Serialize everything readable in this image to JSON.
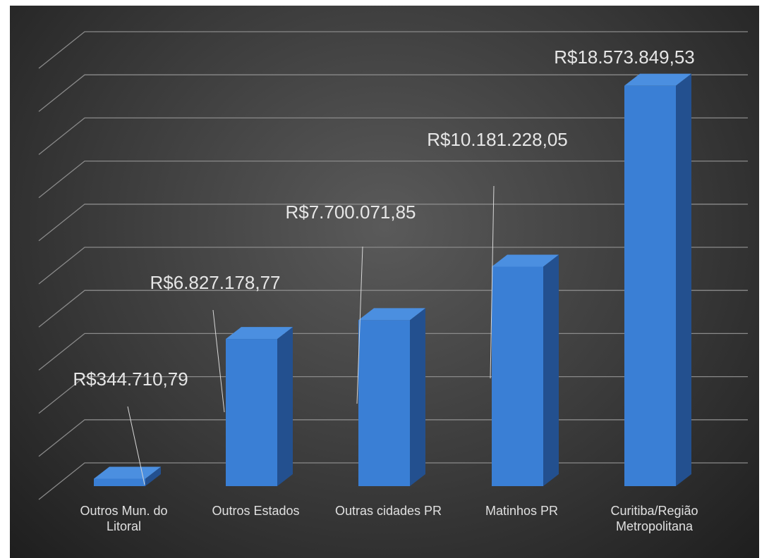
{
  "chart_data": {
    "type": "bar3d",
    "categories": [
      "Outros Mun. do Litoral",
      "Outros Estados",
      "Outras cidades PR",
      "Matinhos PR",
      "Curitiba/Região Metropolitana"
    ],
    "values": [
      344710.79,
      6827178.77,
      7700071.85,
      10181228.05,
      18573849.53
    ],
    "value_labels": [
      "R$344.710,79",
      "R$6.827.178,77",
      "R$7.700.071,85",
      "R$10.181.228,05",
      "R$18.573.849,53"
    ],
    "color": "#3a7fd5",
    "ylim": [
      0,
      20000000
    ],
    "yticks": [
      0,
      2000000,
      4000000,
      6000000,
      8000000,
      10000000,
      12000000,
      14000000,
      16000000,
      18000000,
      20000000
    ],
    "grid": true
  }
}
